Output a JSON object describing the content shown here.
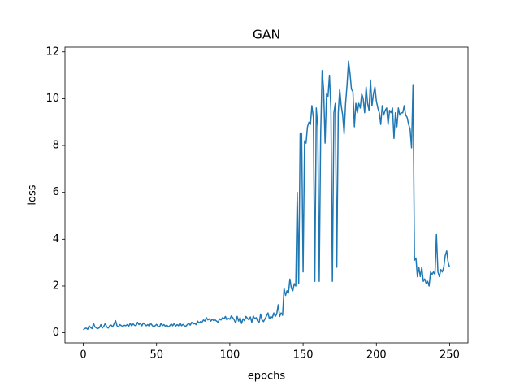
{
  "chart_data": {
    "type": "line",
    "title": "GAN",
    "xlabel": "epochs",
    "ylabel": "loss",
    "xlim": [
      -12.5,
      262.5
    ],
    "ylim": [
      -0.43,
      12.2
    ],
    "xticks": [
      0,
      50,
      100,
      150,
      200,
      250
    ],
    "yticks": [
      0,
      2,
      4,
      6,
      8,
      10,
      12
    ],
    "x": [
      0,
      1,
      2,
      3,
      4,
      5,
      6,
      7,
      8,
      9,
      10,
      11,
      12,
      13,
      14,
      15,
      16,
      17,
      18,
      19,
      20,
      21,
      22,
      23,
      24,
      25,
      26,
      27,
      28,
      29,
      30,
      31,
      32,
      33,
      34,
      35,
      36,
      37,
      38,
      39,
      40,
      41,
      42,
      43,
      44,
      45,
      46,
      47,
      48,
      49,
      50,
      51,
      52,
      53,
      54,
      55,
      56,
      57,
      58,
      59,
      60,
      61,
      62,
      63,
      64,
      65,
      66,
      67,
      68,
      69,
      70,
      71,
      72,
      73,
      74,
      75,
      76,
      77,
      78,
      79,
      80,
      81,
      82,
      83,
      84,
      85,
      86,
      87,
      88,
      89,
      90,
      91,
      92,
      93,
      94,
      95,
      96,
      97,
      98,
      99,
      100,
      101,
      102,
      103,
      104,
      105,
      106,
      107,
      108,
      109,
      110,
      111,
      112,
      113,
      114,
      115,
      116,
      117,
      118,
      119,
      120,
      121,
      122,
      123,
      124,
      125,
      126,
      127,
      128,
      129,
      130,
      131,
      132,
      133,
      134,
      135,
      136,
      137,
      138,
      139,
      140,
      141,
      142,
      143,
      144,
      145,
      146,
      147,
      148,
      149,
      150,
      151,
      152,
      153,
      154,
      155,
      156,
      157,
      158,
      159,
      160,
      161,
      162,
      163,
      164,
      165,
      166,
      167,
      168,
      169,
      170,
      171,
      172,
      173,
      174,
      175,
      176,
      177,
      178,
      179,
      180,
      181,
      182,
      183,
      184,
      185,
      186,
      187,
      188,
      189,
      190,
      191,
      192,
      193,
      194,
      195,
      196,
      197,
      198,
      199,
      200,
      201,
      202,
      203,
      204,
      205,
      206,
      207,
      208,
      209,
      210,
      211,
      212,
      213,
      214,
      215,
      216,
      217,
      218,
      219,
      220,
      221,
      222,
      223,
      224,
      225,
      226,
      227,
      228,
      229,
      230,
      231,
      232,
      233,
      234,
      235,
      236,
      237,
      238,
      239,
      240,
      241,
      242,
      243,
      244,
      245,
      246,
      247,
      248,
      249,
      250
    ],
    "series": [
      {
        "color": "#1f77b4",
        "values": [
          0.13,
          0.18,
          0.2,
          0.15,
          0.3,
          0.22,
          0.18,
          0.4,
          0.25,
          0.2,
          0.18,
          0.22,
          0.35,
          0.2,
          0.28,
          0.4,
          0.25,
          0.2,
          0.3,
          0.33,
          0.25,
          0.38,
          0.52,
          0.3,
          0.25,
          0.35,
          0.3,
          0.28,
          0.32,
          0.3,
          0.35,
          0.28,
          0.4,
          0.3,
          0.38,
          0.32,
          0.3,
          0.45,
          0.35,
          0.4,
          0.3,
          0.42,
          0.36,
          0.3,
          0.35,
          0.28,
          0.4,
          0.32,
          0.25,
          0.3,
          0.36,
          0.28,
          0.25,
          0.4,
          0.3,
          0.35,
          0.28,
          0.33,
          0.25,
          0.3,
          0.38,
          0.3,
          0.4,
          0.28,
          0.35,
          0.3,
          0.42,
          0.3,
          0.36,
          0.3,
          0.28,
          0.35,
          0.4,
          0.33,
          0.45,
          0.38,
          0.4,
          0.35,
          0.5,
          0.42,
          0.48,
          0.45,
          0.55,
          0.5,
          0.65,
          0.55,
          0.6,
          0.5,
          0.58,
          0.52,
          0.55,
          0.5,
          0.45,
          0.6,
          0.55,
          0.65,
          0.6,
          0.7,
          0.55,
          0.62,
          0.58,
          0.72,
          0.65,
          0.55,
          0.42,
          0.7,
          0.5,
          0.65,
          0.4,
          0.6,
          0.52,
          0.7,
          0.62,
          0.55,
          0.68,
          0.45,
          0.72,
          0.6,
          0.65,
          0.5,
          0.45,
          0.8,
          0.55,
          0.48,
          0.6,
          0.72,
          0.85,
          0.6,
          0.7,
          0.65,
          0.85,
          0.7,
          0.8,
          1.2,
          0.7,
          0.85,
          0.75,
          1.9,
          1.6,
          1.8,
          1.7,
          2.3,
          1.9,
          1.8,
          2.1,
          2.0,
          6.0,
          2.1,
          8.5,
          8.5,
          2.6,
          8.2,
          8.1,
          8.8,
          9.0,
          8.9,
          9.7,
          9.2,
          2.2,
          9.6,
          8.8,
          2.2,
          8.5,
          11.2,
          10.4,
          8.1,
          10.2,
          10.1,
          11.0,
          9.5,
          2.2,
          9.4,
          9.8,
          2.8,
          9.4,
          10.4,
          9.7,
          9.3,
          8.5,
          9.8,
          10.6,
          11.6,
          11.1,
          10.4,
          10.3,
          8.8,
          9.8,
          9.4,
          9.8,
          9.6,
          10.2,
          10.0,
          9.4,
          10.5,
          9.8,
          9.5,
          10.8,
          9.7,
          10.2,
          10.5,
          9.9,
          9.6,
          9.4,
          8.9,
          9.7,
          9.3,
          9.5,
          9.6,
          8.9,
          9.5,
          9.4,
          9.6,
          8.3,
          9.4,
          8.8,
          9.6,
          9.3,
          9.4,
          9.4,
          9.7,
          9.3,
          9.2,
          8.9,
          8.7,
          7.9,
          10.6,
          3.1,
          3.2,
          2.4,
          2.8,
          2.4,
          2.8,
          2.2,
          2.3,
          2.1,
          2.2,
          2.0,
          2.6,
          2.5,
          2.6,
          2.5,
          4.2,
          2.6,
          2.4,
          2.7,
          2.6,
          2.8,
          3.3,
          3.5,
          3.0,
          2.8
        ]
      }
    ]
  }
}
